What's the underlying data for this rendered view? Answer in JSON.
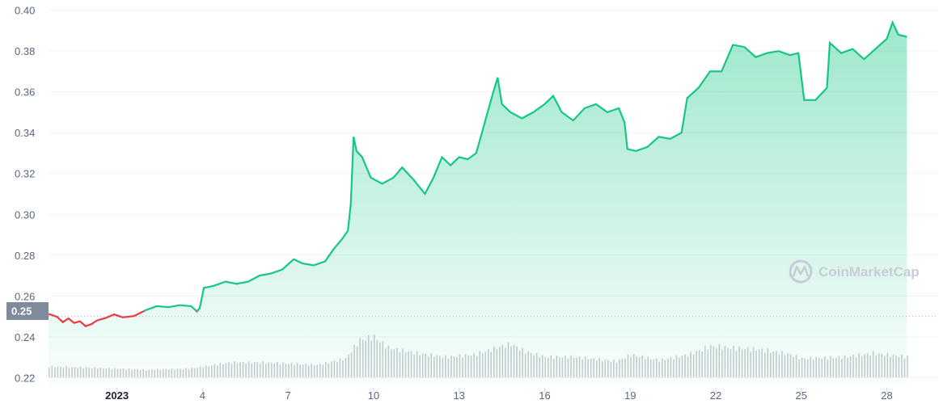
{
  "chart_data": {
    "type": "area",
    "x_axis": {
      "ticks": [
        "2023",
        "4",
        "7",
        "10",
        "13",
        "16",
        "19",
        "22",
        "25",
        "28"
      ],
      "tick_days": [
        1,
        4,
        7,
        10,
        13,
        16,
        19,
        22,
        25,
        28
      ],
      "range_days": [
        -1.4,
        29.8
      ]
    },
    "y_axis": {
      "ticks": [
        "0.22",
        "0.24",
        "0.26",
        "0.28",
        "0.30",
        "0.32",
        "0.34",
        "0.36",
        "0.38",
        "0.40"
      ],
      "ylim": [
        0.215,
        0.405
      ]
    },
    "reference_price": {
      "value": 0.25,
      "label": "0.25"
    },
    "series": [
      {
        "color": "#16c784",
        "down_color": "#ea3943",
        "points": [
          [
            -1.4,
            0.2512
          ],
          [
            -1.1,
            0.2498
          ],
          [
            -0.9,
            0.2472
          ],
          [
            -0.7,
            0.249
          ],
          [
            -0.5,
            0.2468
          ],
          [
            -0.3,
            0.2476
          ],
          [
            -0.1,
            0.2452
          ],
          [
            0.1,
            0.2462
          ],
          [
            0.3,
            0.248
          ],
          [
            0.6,
            0.2492
          ],
          [
            0.9,
            0.251
          ],
          [
            1.2,
            0.2495
          ],
          [
            1.6,
            0.2502
          ],
          [
            2.0,
            0.253
          ],
          [
            2.4,
            0.255
          ],
          [
            2.8,
            0.2545
          ],
          [
            3.2,
            0.2555
          ],
          [
            3.6,
            0.255
          ],
          [
            3.8,
            0.2525
          ],
          [
            3.9,
            0.254
          ],
          [
            4.05,
            0.264
          ],
          [
            4.4,
            0.265
          ],
          [
            4.8,
            0.267
          ],
          [
            5.2,
            0.266
          ],
          [
            5.6,
            0.267
          ],
          [
            6.0,
            0.27
          ],
          [
            6.4,
            0.271
          ],
          [
            6.8,
            0.273
          ],
          [
            7.2,
            0.278
          ],
          [
            7.5,
            0.276
          ],
          [
            7.9,
            0.275
          ],
          [
            8.3,
            0.277
          ],
          [
            8.6,
            0.283
          ],
          [
            8.9,
            0.288
          ],
          [
            9.1,
            0.292
          ],
          [
            9.2,
            0.305
          ],
          [
            9.3,
            0.338
          ],
          [
            9.4,
            0.331
          ],
          [
            9.6,
            0.328
          ],
          [
            9.9,
            0.318
          ],
          [
            10.3,
            0.315
          ],
          [
            10.7,
            0.318
          ],
          [
            11.0,
            0.323
          ],
          [
            11.4,
            0.317
          ],
          [
            11.8,
            0.31
          ],
          [
            12.1,
            0.318
          ],
          [
            12.4,
            0.328
          ],
          [
            12.7,
            0.324
          ],
          [
            13.0,
            0.328
          ],
          [
            13.3,
            0.327
          ],
          [
            13.6,
            0.33
          ],
          [
            13.8,
            0.34
          ],
          [
            14.0,
            0.35
          ],
          [
            14.2,
            0.36
          ],
          [
            14.35,
            0.367
          ],
          [
            14.5,
            0.354
          ],
          [
            14.8,
            0.35
          ],
          [
            15.2,
            0.347
          ],
          [
            15.6,
            0.35
          ],
          [
            16.0,
            0.354
          ],
          [
            16.3,
            0.358
          ],
          [
            16.6,
            0.35
          ],
          [
            17.0,
            0.346
          ],
          [
            17.4,
            0.352
          ],
          [
            17.8,
            0.354
          ],
          [
            18.2,
            0.35
          ],
          [
            18.6,
            0.352
          ],
          [
            18.8,
            0.345
          ],
          [
            18.9,
            0.332
          ],
          [
            19.2,
            0.331
          ],
          [
            19.6,
            0.333
          ],
          [
            20.0,
            0.338
          ],
          [
            20.4,
            0.337
          ],
          [
            20.8,
            0.34
          ],
          [
            21.0,
            0.357
          ],
          [
            21.4,
            0.362
          ],
          [
            21.8,
            0.37
          ],
          [
            22.2,
            0.37
          ],
          [
            22.6,
            0.383
          ],
          [
            23.0,
            0.382
          ],
          [
            23.4,
            0.377
          ],
          [
            23.8,
            0.379
          ],
          [
            24.2,
            0.38
          ],
          [
            24.6,
            0.378
          ],
          [
            24.9,
            0.379
          ],
          [
            25.1,
            0.356
          ],
          [
            25.5,
            0.356
          ],
          [
            25.9,
            0.362
          ],
          [
            26.0,
            0.384
          ],
          [
            26.4,
            0.379
          ],
          [
            26.8,
            0.381
          ],
          [
            27.2,
            0.376
          ],
          [
            27.6,
            0.381
          ],
          [
            28.0,
            0.386
          ],
          [
            28.2,
            0.394
          ],
          [
            28.4,
            0.388
          ],
          [
            28.7,
            0.387
          ]
        ]
      }
    ],
    "volume": {
      "color": "#c9ccd3",
      "points": [
        [
          -1.4,
          0.2
        ],
        [
          0.0,
          0.18
        ],
        [
          2.0,
          0.14
        ],
        [
          3.5,
          0.16
        ],
        [
          5.0,
          0.28
        ],
        [
          6.5,
          0.27
        ],
        [
          8.0,
          0.23
        ],
        [
          9.0,
          0.35
        ],
        [
          9.5,
          0.7
        ],
        [
          10.0,
          0.75
        ],
        [
          10.5,
          0.55
        ],
        [
          11.5,
          0.45
        ],
        [
          12.5,
          0.38
        ],
        [
          13.5,
          0.42
        ],
        [
          14.3,
          0.55
        ],
        [
          14.8,
          0.62
        ],
        [
          15.3,
          0.48
        ],
        [
          16.0,
          0.38
        ],
        [
          17.0,
          0.38
        ],
        [
          18.5,
          0.3
        ],
        [
          19.0,
          0.42
        ],
        [
          20.0,
          0.32
        ],
        [
          21.0,
          0.42
        ],
        [
          21.8,
          0.58
        ],
        [
          22.5,
          0.55
        ],
        [
          23.5,
          0.52
        ],
        [
          24.5,
          0.44
        ],
        [
          25.0,
          0.35
        ],
        [
          26.5,
          0.38
        ],
        [
          27.5,
          0.45
        ],
        [
          28.7,
          0.38
        ]
      ]
    },
    "grid": true
  },
  "watermark": {
    "text": "CoinMarketCap"
  }
}
